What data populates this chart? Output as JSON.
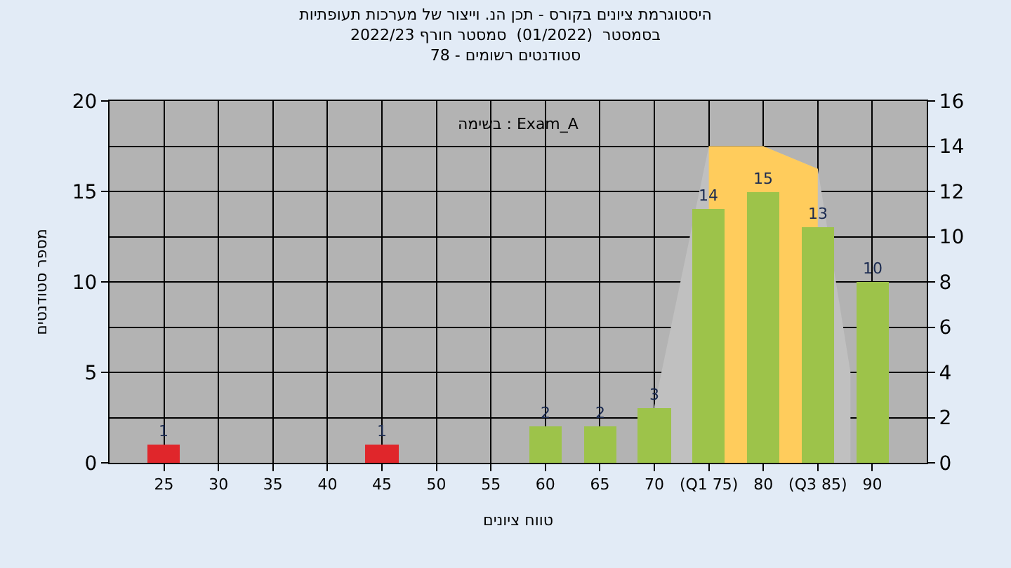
{
  "chart_data": {
    "type": "bar",
    "title": "היסטוגרמת ציונים בקורס - תכן הנ. וייצור של מערכות תעופתיות\nבסמסטר  (01/2022)  סמסטר חורף 2022/23\nסטודנטים רשומים - 78",
    "xlabel": "טווח ציונים",
    "ylabel": "מספר סטודנטים",
    "annotations": [
      "בשימה : Exam_A"
    ],
    "x": [
      25,
      45,
      60,
      65,
      70,
      75,
      80,
      85,
      90
    ],
    "series": [
      {
        "type": "area",
        "axis": "y2",
        "color": "#c0c0c0",
        "x": [
          70,
          75,
          80,
          85,
          88
        ],
        "values": [
          2.5,
          14,
          14,
          13,
          4
        ]
      },
      {
        "type": "area",
        "axis": "y2",
        "color": "#ffcc5c",
        "x": [
          75,
          80,
          85
        ],
        "values": [
          14,
          14,
          13
        ]
      },
      {
        "colors": [
          "#e0262b",
          "#e0262b",
          "#9dc34a",
          "#9dc34a",
          "#9dc34a",
          "#9dc34a",
          "#9dc34a",
          "#9dc34a",
          "#9dc34a"
        ],
        "values": [
          1,
          1,
          2,
          2,
          3,
          14,
          15,
          13,
          10
        ],
        "value_labels": [
          "1",
          "1",
          "2",
          "2",
          "3",
          "14",
          "15",
          "13",
          "10"
        ]
      }
    ],
    "xlim": [
      20,
      95
    ],
    "xticks": [
      25,
      30,
      35,
      40,
      45,
      50,
      55,
      60,
      65,
      70,
      {
        "value": 75,
        "label": "(Q1 75)"
      },
      80,
      {
        "value": 85,
        "label": "(Q3 85)"
      },
      90
    ],
    "ylim": [
      0,
      20
    ],
    "yticks": [
      0,
      5,
      10,
      15,
      20
    ],
    "y2lim": [
      0,
      16
    ],
    "y2ticks": [
      0,
      2,
      4,
      6,
      8,
      10,
      12,
      14,
      16
    ],
    "grid": true
  }
}
